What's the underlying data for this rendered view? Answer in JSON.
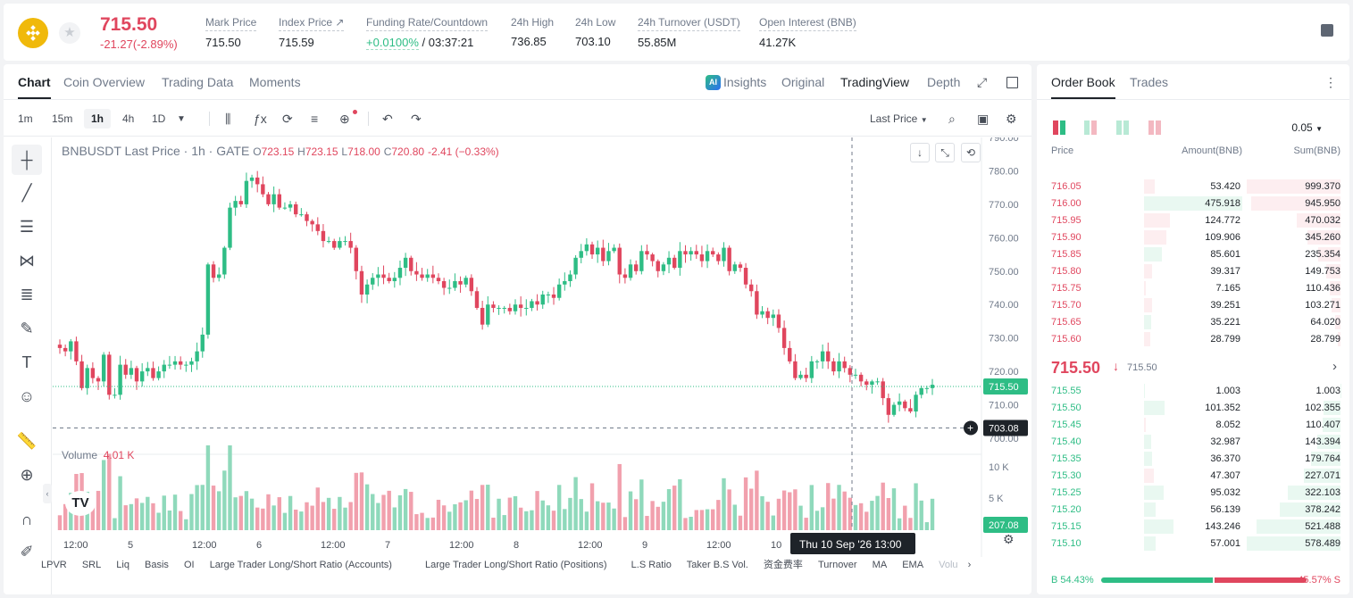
{
  "ticker": {
    "price": "715.50",
    "change": "-21.27(-2.89%)",
    "stats": [
      {
        "label": "Mark Price",
        "value": "715.50"
      },
      {
        "label": "Index Price ↗",
        "value": "715.59"
      },
      {
        "label": "Funding Rate/Countdown",
        "value_green": "+0.0100%",
        "value": " / 03:37:21"
      },
      {
        "label": "24h High",
        "value": "736.85"
      },
      {
        "label": "24h Low",
        "value": "703.10"
      },
      {
        "label": "24h Turnover (USDT)",
        "value": "55.85M"
      },
      {
        "label": "Open Interest (BNB)",
        "value": "41.27K"
      }
    ]
  },
  "chart_tabs": {
    "left": [
      "Chart",
      "Coin Overview",
      "Trading Data",
      "Moments"
    ],
    "ai_badge": "AI",
    "right": [
      "Insights",
      "Original",
      "TradingView",
      "Depth"
    ]
  },
  "toolbar": {
    "intervals": [
      "1m",
      "15m",
      "1h",
      "4h",
      "1D"
    ],
    "price_type": "Last Price"
  },
  "legend": {
    "symbol": "BNBUSDT Last Price · 1h · GATE",
    "o_label": "O",
    "o": "723.15",
    "h_label": "H",
    "h": "723.15",
    "l_label": "L",
    "l": "718.00",
    "c_label": "C",
    "c": "720.80",
    "chg": "-2.41 (−0.33%)",
    "volume_label": "Volume",
    "volume_value": "4.01 K"
  },
  "chart_data": {
    "type": "candlestick",
    "y_ticks": [
      "790.00",
      "780.00",
      "770.00",
      "760.00",
      "750.00",
      "740.00",
      "730.00",
      "720.00",
      "710.00",
      "700.00"
    ],
    "ylim": [
      700,
      790
    ],
    "vol_ticks": [
      "10 K",
      "5 K"
    ],
    "x_ticks": [
      "12:00",
      "5",
      "12:00",
      "6",
      "12:00",
      "7",
      "12:00",
      "8",
      "12:00",
      "9",
      "12:00",
      "10",
      "12:00"
    ],
    "price_tag": "715.50",
    "crosshair_price": "703.08",
    "crosshair_time": "Thu 10 Sep '26   13:00",
    "volume_tag": "207.08",
    "closes": [
      727,
      726,
      729,
      723,
      715,
      721,
      718,
      717,
      725,
      713,
      713,
      722,
      719,
      721,
      717,
      720,
      721,
      718,
      720,
      722,
      722,
      723,
      722,
      722,
      723,
      726,
      731,
      752,
      748,
      749,
      757,
      769,
      771,
      770,
      777,
      778,
      776,
      773,
      770,
      773,
      769,
      769,
      770,
      767,
      767,
      765,
      764,
      762,
      759,
      759,
      757,
      759,
      759,
      757,
      750,
      743,
      746,
      748,
      749,
      748,
      747,
      748,
      751,
      754,
      750,
      749,
      748,
      749,
      748,
      747,
      745,
      745,
      747,
      746,
      748,
      744,
      739,
      734,
      740,
      739,
      739,
      739,
      738,
      740,
      739,
      739,
      741,
      740,
      743,
      743,
      742,
      746,
      747,
      749,
      754,
      756,
      758,
      755,
      757,
      753,
      756,
      757,
      749,
      748,
      752,
      750,
      756,
      755,
      753,
      750,
      752,
      754,
      751,
      756,
      755,
      756,
      755,
      753,
      756,
      755,
      753,
      757,
      750,
      752,
      751,
      746,
      744,
      737,
      738,
      736,
      737,
      733,
      727,
      723,
      718,
      719,
      718,
      723,
      723,
      726,
      723,
      720,
      723,
      721,
      719,
      719,
      717,
      716,
      717,
      717,
      712,
      707,
      710,
      711,
      709,
      708,
      713,
      715,
      715,
      716
    ]
  },
  "bottom_indicators": [
    "LPVR",
    "SRL",
    "Liq",
    "Basis",
    "OI",
    "Large Trader Long/Short Ratio (Accounts)",
    "Large Trader Long/Short Ratio (Positions)",
    "L.S Ratio",
    "Taker B.S Vol.",
    "资金费率",
    "Turnover",
    "MA",
    "EMA",
    "Volu"
  ],
  "order_book": {
    "tabs": [
      "Order Book",
      "Trades"
    ],
    "tick": "0.05",
    "headers": [
      "Price",
      "Amount(BNB)",
      "Sum(BNB)"
    ],
    "asks": [
      {
        "p": "716.05",
        "a": "53.420",
        "s": "999.370",
        "af": 0.11,
        "sf": 1.0,
        "buy": false
      },
      {
        "p": "716.00",
        "a": "475.918",
        "s": "945.950",
        "af": 1.0,
        "sf": 0.95,
        "buy": true
      },
      {
        "p": "715.95",
        "a": "124.772",
        "s": "470.032",
        "af": 0.26,
        "sf": 0.47,
        "buy": false
      },
      {
        "p": "715.90",
        "a": "109.906",
        "s": "345.260",
        "af": 0.23,
        "sf": 0.35,
        "buy": false
      },
      {
        "p": "715.85",
        "a": "85.601",
        "s": "235.354",
        "af": 0.18,
        "sf": 0.24,
        "buy": true
      },
      {
        "p": "715.80",
        "a": "39.317",
        "s": "149.753",
        "af": 0.08,
        "sf": 0.15,
        "buy": false
      },
      {
        "p": "715.75",
        "a": "7.165",
        "s": "110.436",
        "af": 0.02,
        "sf": 0.11,
        "buy": false
      },
      {
        "p": "715.70",
        "a": "39.251",
        "s": "103.271",
        "af": 0.08,
        "sf": 0.1,
        "buy": false
      },
      {
        "p": "715.65",
        "a": "35.221",
        "s": "64.020",
        "af": 0.07,
        "sf": 0.06,
        "buy": true
      },
      {
        "p": "715.60",
        "a": "28.799",
        "s": "28.799",
        "af": 0.06,
        "sf": 0.03,
        "buy": false
      }
    ],
    "mid_price": "715.50",
    "mid_arrow": "↓",
    "mid_mark": "715.50",
    "bids": [
      {
        "p": "715.55",
        "a": "1.003",
        "s": "1.003",
        "af": 0.01,
        "sf": 0.002,
        "buy": true
      },
      {
        "p": "715.50",
        "a": "101.352",
        "s": "102.355",
        "af": 0.21,
        "sf": 0.18,
        "buy": true
      },
      {
        "p": "715.45",
        "a": "8.052",
        "s": "110.407",
        "af": 0.02,
        "sf": 0.19,
        "buy": false
      },
      {
        "p": "715.40",
        "a": "32.987",
        "s": "143.394",
        "af": 0.07,
        "sf": 0.25,
        "buy": true
      },
      {
        "p": "715.35",
        "a": "36.370",
        "s": "179.764",
        "af": 0.08,
        "sf": 0.31,
        "buy": true
      },
      {
        "p": "715.30",
        "a": "47.307",
        "s": "227.071",
        "af": 0.1,
        "sf": 0.39,
        "buy": false
      },
      {
        "p": "715.25",
        "a": "95.032",
        "s": "322.103",
        "af": 0.2,
        "sf": 0.56,
        "buy": true
      },
      {
        "p": "715.20",
        "a": "56.139",
        "s": "378.242",
        "af": 0.12,
        "sf": 0.65,
        "buy": true
      },
      {
        "p": "715.15",
        "a": "143.246",
        "s": "521.488",
        "af": 0.3,
        "sf": 0.9,
        "buy": true
      },
      {
        "p": "715.10",
        "a": "57.001",
        "s": "578.489",
        "af": 0.12,
        "sf": 1.0,
        "buy": true
      }
    ],
    "buy_pct_label": "B 54.43%",
    "sell_pct_label": "45.57% S",
    "buy_fraction": 0.5443
  },
  "colors": {
    "up": "#2ebd85",
    "down": "#e0465e",
    "up_bg": "#e9f8f1",
    "down_bg": "#fdeef0"
  }
}
